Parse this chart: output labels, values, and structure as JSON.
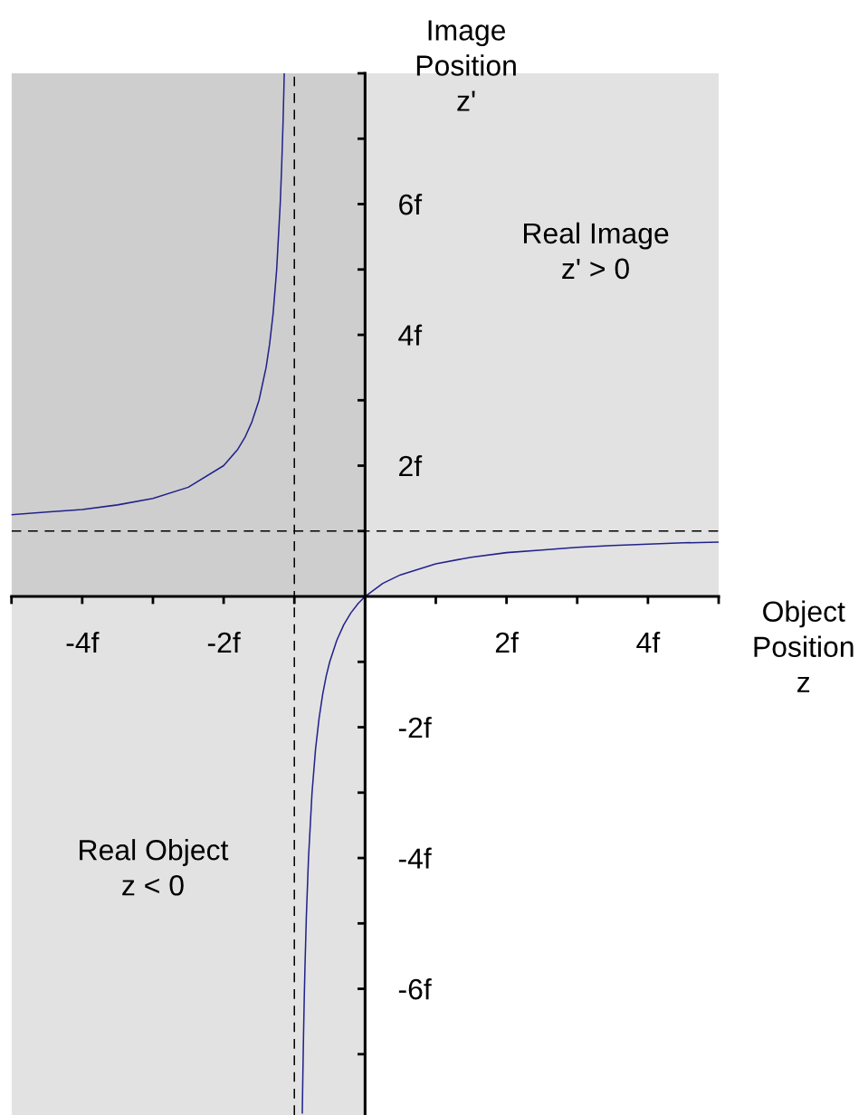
{
  "chart_data": {
    "type": "line",
    "xlabel": "Object\nPosition\nz",
    "ylabel": "Image\nPosition\nz'",
    "xlim": [
      -5,
      5
    ],
    "ylim": [
      -7.93,
      8
    ],
    "xticks": [
      {
        "value": -5,
        "label": null
      },
      {
        "value": -4,
        "label": "-4f"
      },
      {
        "value": -3,
        "label": null
      },
      {
        "value": -2,
        "label": "-2f"
      },
      {
        "value": -1,
        "label": null
      },
      {
        "value": 1,
        "label": null
      },
      {
        "value": 2,
        "label": "2f"
      },
      {
        "value": 3,
        "label": null
      },
      {
        "value": 4,
        "label": "4f"
      },
      {
        "value": 5,
        "label": null
      }
    ],
    "yticks": [
      {
        "value": -7,
        "label": null
      },
      {
        "value": -6,
        "label": "-6f"
      },
      {
        "value": -5,
        "label": null
      },
      {
        "value": -4,
        "label": "-4f"
      },
      {
        "value": -3,
        "label": null
      },
      {
        "value": -2,
        "label": "-2f"
      },
      {
        "value": -1,
        "label": null
      },
      {
        "value": 1,
        "label": null
      },
      {
        "value": 2,
        "label": "2f"
      },
      {
        "value": 3,
        "label": null
      },
      {
        "value": 4,
        "label": "4f"
      },
      {
        "value": 5,
        "label": null
      },
      {
        "value": 6,
        "label": "6f"
      },
      {
        "value": 7,
        "label": null
      },
      {
        "value": 8,
        "label": null
      }
    ],
    "series": [
      {
        "color": "#22228c",
        "x": [
          -5,
          -4.5,
          -4,
          -3.5,
          -3,
          -2.5,
          -2,
          -1.8,
          -1.7,
          -1.6,
          -1.5,
          -1.4,
          -1.35,
          -1.3,
          -1.25,
          -1.2,
          -1.18,
          -1.16,
          -1.15,
          -1.143,
          -1,
          -0.888,
          -0.88,
          -0.87,
          -0.86,
          -0.85,
          -0.83,
          -0.8,
          -0.75,
          -0.7,
          -0.65,
          -0.6,
          -0.55,
          -0.5,
          -0.4,
          -0.3,
          -0.2,
          -0.1,
          0,
          0.25,
          0.5,
          1,
          1.5,
          2,
          2.5,
          3,
          3.5,
          4,
          4.5,
          5
        ],
        "values": [
          1.25,
          1.29,
          1.33,
          1.4,
          1.5,
          1.67,
          2,
          2.25,
          2.43,
          2.67,
          3,
          3.5,
          3.86,
          4.33,
          5,
          6,
          6.56,
          7.25,
          7.67,
          8,
          null,
          -7.9,
          -7.33,
          -6.69,
          -6.14,
          -5.67,
          -4.88,
          -4,
          -3,
          -2.33,
          -1.86,
          -1.5,
          -1.22,
          -1,
          -0.67,
          -0.43,
          -0.25,
          -0.11,
          0,
          0.2,
          0.33,
          0.5,
          0.6,
          0.67,
          0.71,
          0.75,
          0.78,
          0.8,
          0.82,
          0.83
        ]
      }
    ],
    "ref_lines": [
      {
        "axis": "x",
        "value": -1,
        "color": "#000000",
        "line_style": "dashed"
      },
      {
        "axis": "y",
        "value": 1,
        "color": "#000000",
        "line_style": "dashed"
      }
    ],
    "bands": [
      {
        "axis": "x",
        "from": -5,
        "to": 0,
        "label": "Real Object\nz < 0",
        "color": "#9e9e9e"
      },
      {
        "axis": "y",
        "from": 0,
        "to": 8,
        "label": "Real Image\nz' > 0",
        "color": "#9e9e9e"
      }
    ]
  }
}
